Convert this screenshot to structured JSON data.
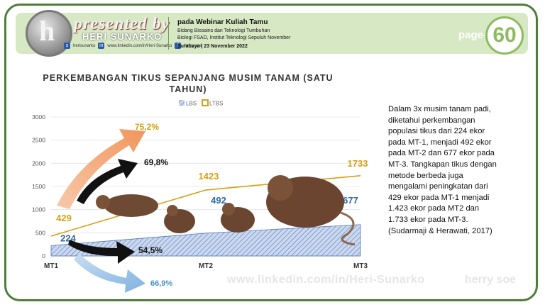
{
  "header": {
    "presenter_script": "presented by",
    "presenter_name": "HERI SUNARKO",
    "social": [
      "herisunarko",
      "www.linkedin.com/in/Heri-Sunarko",
      "herry soe"
    ],
    "event": "pada Webinar Kuliah Tamu",
    "line1": "Bidang Biosains dan Teknologi Tumbuhan",
    "line2": "Biologi FSAD, Institut Teknologi Sepuluh November",
    "date": "Surabaya | 23 November 2022",
    "page_label": "page-",
    "page_number": "60"
  },
  "description": "Dalam 3x musim tanam padi,\ndiketahui perkembangan\npopulasi tikus dari 224 ekor\npada MT-1, menjadi 492 ekor\npada MT-2 dan 677 ekor pada\nMT-3. Tangkapan tikus dengan\nmetode berbeda juga\nmengalami peningkatan dari\n429 ekor pada MT-1 menjadi\n1.423 ekor pada MT2 dan\n1.733 ekor pada MT-3.\n(Sudarmaji & Herawati, 2017)",
  "watermark": "www.linkedin.com/in/Heri-Sunarko",
  "watermark_right": "herry soe",
  "chart_data": {
    "type": "area",
    "title_lines": [
      "PERKEMBANGAN TIKUS SEPANJANG MUSIM TANAM (SATU",
      "TAHUN)"
    ],
    "categories": [
      "MT1",
      "MT2",
      "MT3"
    ],
    "ylim": [
      0,
      3000
    ],
    "yticks": [
      0,
      500,
      1000,
      1500,
      2000,
      2500,
      3000
    ],
    "legend": "top",
    "series": [
      {
        "name": "LBS",
        "values": [
          224,
          492,
          677
        ],
        "color": "#4a72b8",
        "labels": [
          "224",
          "492",
          "677"
        ]
      },
      {
        "name": "LTBS",
        "values": [
          429,
          1423,
          1733
        ],
        "color": "#d4a017",
        "labels": [
          "429",
          "1423",
          "1733"
        ]
      }
    ],
    "annotations": [
      {
        "text": "75,2%",
        "color": "#d4a017"
      },
      {
        "text": "69,8%",
        "color": "#111111"
      },
      {
        "text": "54,5%",
        "color": "#111111"
      },
      {
        "text": "66,9%",
        "color": "#4a90c8"
      }
    ]
  }
}
